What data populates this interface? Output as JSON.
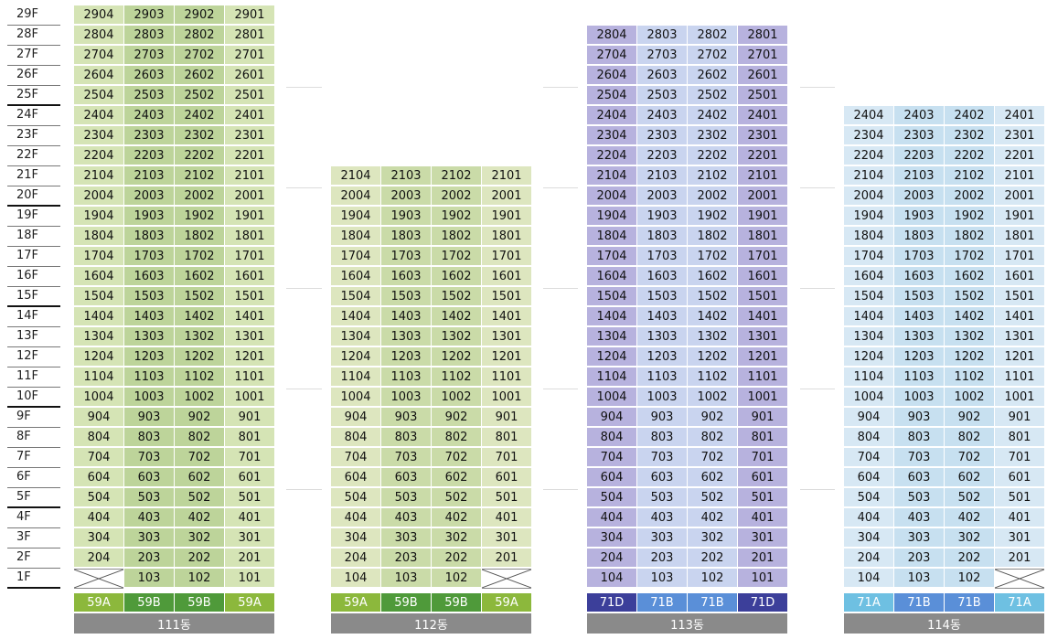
{
  "floors": [
    "29F",
    "28F",
    "27F",
    "26F",
    "25F",
    "24F",
    "23F",
    "22F",
    "21F",
    "20F",
    "19F",
    "18F",
    "17F",
    "16F",
    "15F",
    "14F",
    "13F",
    "12F",
    "11F",
    "10F",
    "9F",
    "8F",
    "7F",
    "6F",
    "5F",
    "4F",
    "3F",
    "2F",
    "1F"
  ],
  "buildings": [
    {
      "name": "111동",
      "top_floor": 29,
      "palette": {
        "a": "#d5e4b5",
        "b": "#bdd49a"
      },
      "unit_types": [
        {
          "label": "59A",
          "color": "#8cb83c"
        },
        {
          "label": "59B",
          "color": "#4f9a3a"
        },
        {
          "label": "59B",
          "color": "#4f9a3a"
        },
        {
          "label": "59A",
          "color": "#8cb83c"
        }
      ],
      "first_floor": [
        "",
        "103",
        "102",
        "101"
      ]
    },
    {
      "name": "112동",
      "top_floor": 21,
      "palette": {
        "a": "#dde6bf",
        "b": "#cadba8"
      },
      "unit_types": [
        {
          "label": "59A",
          "color": "#8cb83c"
        },
        {
          "label": "59B",
          "color": "#4f9a3a"
        },
        {
          "label": "59B",
          "color": "#4f9a3a"
        },
        {
          "label": "59A",
          "color": "#8cb83c"
        }
      ],
      "first_floor": [
        "104",
        "103",
        "102",
        ""
      ]
    },
    {
      "name": "113동",
      "top_floor": 28,
      "palette": {
        "a": "#b7b2de",
        "b": "#c9d4ef"
      },
      "unit_types": [
        {
          "label": "71D",
          "color": "#3c3f9a"
        },
        {
          "label": "71B",
          "color": "#5a8fd8"
        },
        {
          "label": "71B",
          "color": "#5a8fd8"
        },
        {
          "label": "71D",
          "color": "#3c3f9a"
        }
      ],
      "first_floor": [
        "104",
        "103",
        "102",
        "101"
      ]
    },
    {
      "name": "114동",
      "top_floor": 24,
      "palette": {
        "a": "#d7e8f4",
        "b": "#c7e0f0"
      },
      "unit_types": [
        {
          "label": "71A",
          "color": "#6ec0e2"
        },
        {
          "label": "71B",
          "color": "#5a8fd8"
        },
        {
          "label": "71B",
          "color": "#5a8fd8"
        },
        {
          "label": "71A",
          "color": "#6ec0e2"
        }
      ],
      "first_floor": [
        "104",
        "103",
        "102",
        ""
      ]
    }
  ]
}
